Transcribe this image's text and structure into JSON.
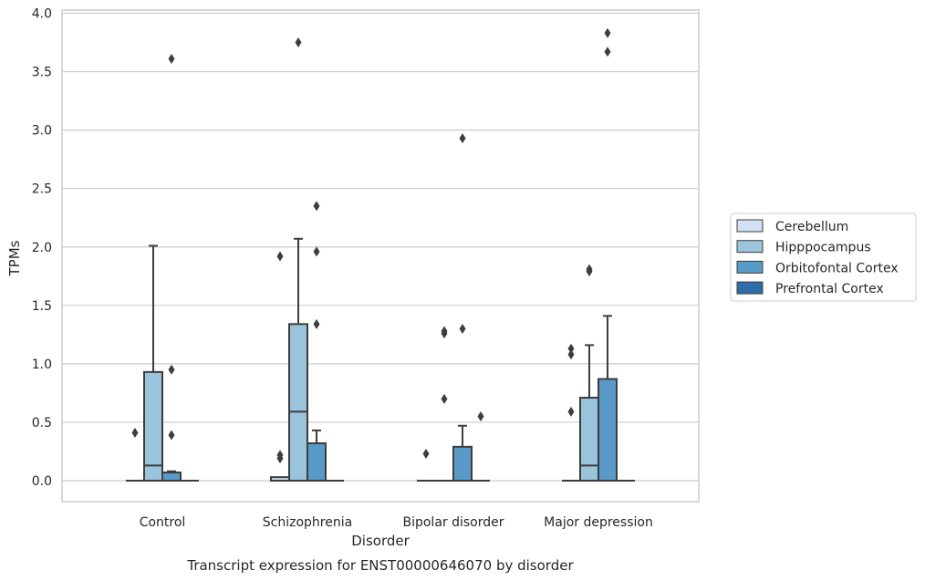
{
  "chart_data": {
    "type": "box",
    "caption": "Transcript expression for ENST00000646070 by disorder",
    "xlabel": "Disorder",
    "ylabel": "TPMs",
    "ylim": [
      -0.18,
      4.03
    ],
    "yticks": [
      "0.0",
      "0.5",
      "1.0",
      "1.5",
      "2.0",
      "2.5",
      "3.0",
      "3.5",
      "4.0"
    ],
    "grid": true,
    "legend_position": "right",
    "categories": [
      "Control",
      "Schizophrenia",
      "Bipolar disorder",
      "Major depression"
    ],
    "series": [
      {
        "name": "Cerebellum",
        "color": "#d0e1f2",
        "boxes": [
          {
            "category": "Control",
            "q1": 0.0,
            "median": 0.0,
            "q3": 0.0,
            "whisker_low": 0.0,
            "whisker_high": 0.0,
            "outliers": [
              0.41
            ]
          },
          {
            "category": "Schizophrenia",
            "q1": 0.0,
            "median": 0.0,
            "q3": 0.03,
            "whisker_low": 0.0,
            "whisker_high": 0.03,
            "outliers": [
              0.19,
              0.22,
              1.92
            ]
          },
          {
            "category": "Bipolar disorder",
            "q1": 0.0,
            "median": 0.0,
            "q3": 0.0,
            "whisker_low": 0.0,
            "whisker_high": 0.0,
            "outliers": [
              0.23
            ]
          },
          {
            "category": "Major depression",
            "q1": 0.0,
            "median": 0.0,
            "q3": 0.0,
            "whisker_low": 0.0,
            "whisker_high": 0.0,
            "outliers": [
              0.59,
              1.08,
              1.13
            ]
          }
        ]
      },
      {
        "name": "Hipppocampus",
        "color": "#9ac3dc",
        "boxes": [
          {
            "category": "Control",
            "q1": 0.0,
            "median": 0.13,
            "q3": 0.93,
            "whisker_low": 0.0,
            "whisker_high": 2.01,
            "outliers": []
          },
          {
            "category": "Schizophrenia",
            "q1": 0.0,
            "median": 0.59,
            "q3": 1.34,
            "whisker_low": 0.0,
            "whisker_high": 2.07,
            "outliers": [
              3.75
            ]
          },
          {
            "category": "Bipolar disorder",
            "q1": 0.0,
            "median": 0.0,
            "q3": 0.0,
            "whisker_low": 0.0,
            "whisker_high": 0.0,
            "outliers": [
              0.7,
              1.26,
              1.28
            ]
          },
          {
            "category": "Major depression",
            "q1": 0.0,
            "median": 0.13,
            "q3": 0.71,
            "whisker_low": 0.0,
            "whisker_high": 1.16,
            "outliers": [
              1.79,
              1.81
            ]
          }
        ]
      },
      {
        "name": "Orbitofontal Cortex",
        "color": "#5a9ac9",
        "boxes": [
          {
            "category": "Control",
            "q1": 0.0,
            "median": 0.0,
            "q3": 0.07,
            "whisker_low": 0.0,
            "whisker_high": 0.08,
            "outliers": [
              0.39,
              0.95,
              3.61
            ]
          },
          {
            "category": "Schizophrenia",
            "q1": 0.0,
            "median": 0.0,
            "q3": 0.32,
            "whisker_low": 0.0,
            "whisker_high": 0.43,
            "outliers": [
              1.34,
              1.96,
              2.35
            ]
          },
          {
            "category": "Bipolar disorder",
            "q1": 0.0,
            "median": 0.0,
            "q3": 0.29,
            "whisker_low": 0.0,
            "whisker_high": 0.47,
            "outliers": [
              1.3,
              2.93
            ]
          },
          {
            "category": "Major depression",
            "q1": 0.0,
            "median": 0.0,
            "q3": 0.87,
            "whisker_low": 0.0,
            "whisker_high": 1.41,
            "outliers": [
              3.67,
              3.83
            ]
          }
        ]
      },
      {
        "name": "Prefrontal Cortex",
        "color": "#2e6da8",
        "boxes": [
          {
            "category": "Control",
            "q1": 0.0,
            "median": 0.0,
            "q3": 0.0,
            "whisker_low": 0.0,
            "whisker_high": 0.0,
            "outliers": []
          },
          {
            "category": "Schizophrenia",
            "q1": 0.0,
            "median": 0.0,
            "q3": 0.0,
            "whisker_low": 0.0,
            "whisker_high": 0.0,
            "outliers": []
          },
          {
            "category": "Bipolar disorder",
            "q1": 0.0,
            "median": 0.0,
            "q3": 0.0,
            "whisker_low": 0.0,
            "whisker_high": 0.0,
            "outliers": [
              0.55
            ]
          },
          {
            "category": "Major depression",
            "q1": 0.0,
            "median": 0.0,
            "q3": 0.0,
            "whisker_low": 0.0,
            "whisker_high": 0.0,
            "outliers": []
          }
        ]
      }
    ]
  }
}
